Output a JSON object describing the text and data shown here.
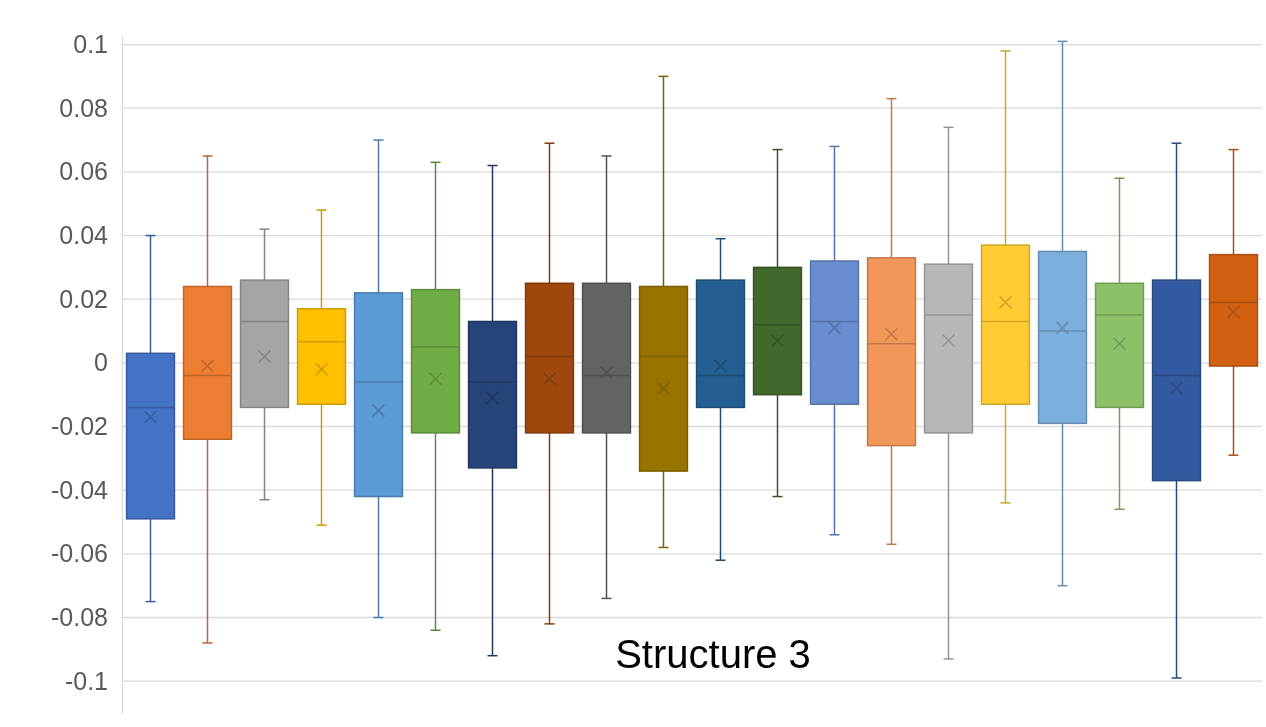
{
  "chart_data": {
    "type": "box",
    "categories": [
      null,
      null,
      null,
      null,
      null,
      null,
      null,
      null,
      null,
      null,
      null,
      null,
      null,
      null,
      null,
      null,
      null,
      null,
      null,
      null
    ],
    "ylim": [
      -0.11,
      0.103
    ],
    "yticks": [
      -0.1,
      -0.08,
      -0.06,
      -0.04,
      -0.02,
      {
        "value": 0,
        "label": "0"
      },
      0.02,
      0.04,
      0.06,
      0.08,
      0.1
    ],
    "grid": "y",
    "colors": [
      "#4472c4",
      "#ed7d31",
      "#a5a5a5",
      "#ffc000",
      "#5b9bd5",
      "#70ad47",
      "#264478",
      "#9e480e",
      "#636363",
      "#997300",
      "#255e91",
      "#43682b",
      "#698ed0",
      "#f1975a",
      "#b7b7b7",
      "#ffcd33",
      "#7cafdd",
      "#8cc168",
      "#335aa1",
      "#d26012"
    ],
    "boxes": [
      {
        "low": -0.075,
        "q1": -0.049,
        "median": -0.014,
        "q3": 0.003,
        "high": 0.04,
        "mean": -0.017
      },
      {
        "low": -0.088,
        "q1": -0.024,
        "median": -0.004,
        "q3": 0.024,
        "high": 0.065,
        "mean": -0.001
      },
      {
        "low": -0.043,
        "q1": -0.014,
        "median": 0.013,
        "q3": 0.026,
        "high": 0.042,
        "mean": 0.002
      },
      {
        "low": -0.051,
        "q1": -0.013,
        "median": 0.0066,
        "q3": 0.017,
        "high": 0.048,
        "mean": -0.002
      },
      {
        "low": -0.08,
        "q1": -0.042,
        "median": -0.006,
        "q3": 0.022,
        "high": 0.07,
        "mean": -0.015
      },
      {
        "low": -0.084,
        "q1": -0.022,
        "median": 0.005,
        "q3": 0.023,
        "high": 0.063,
        "mean": -0.005
      },
      {
        "low": -0.092,
        "q1": -0.033,
        "median": -0.006,
        "q3": 0.013,
        "high": 0.062,
        "mean": -0.011
      },
      {
        "low": -0.082,
        "q1": -0.022,
        "median": 0.002,
        "q3": 0.025,
        "high": 0.069,
        "mean": -0.005
      },
      {
        "low": -0.074,
        "q1": -0.022,
        "median": -0.004,
        "q3": 0.025,
        "high": 0.065,
        "mean": -0.003
      },
      {
        "low": -0.058,
        "q1": -0.034,
        "median": 0.002,
        "q3": 0.024,
        "high": 0.09,
        "mean": -0.008
      },
      {
        "low": -0.062,
        "q1": -0.014,
        "median": -0.004,
        "q3": 0.026,
        "high": 0.039,
        "mean": -0.001
      },
      {
        "low": -0.042,
        "q1": -0.01,
        "median": 0.012,
        "q3": 0.03,
        "high": 0.067,
        "mean": 0.007
      },
      {
        "low": -0.054,
        "q1": -0.013,
        "median": 0.013,
        "q3": 0.032,
        "high": 0.068,
        "mean": 0.011
      },
      {
        "low": -0.057,
        "q1": -0.026,
        "median": 0.006,
        "q3": 0.033,
        "high": 0.083,
        "mean": 0.009
      },
      {
        "low": -0.093,
        "q1": -0.022,
        "median": 0.015,
        "q3": 0.031,
        "high": 0.074,
        "mean": 0.007
      },
      {
        "low": -0.044,
        "q1": -0.013,
        "median": 0.013,
        "q3": 0.037,
        "high": 0.098,
        "mean": 0.019
      },
      {
        "low": -0.07,
        "q1": -0.019,
        "median": 0.01,
        "q3": 0.035,
        "high": 0.101,
        "mean": 0.011
      },
      {
        "low": -0.046,
        "q1": -0.014,
        "median": 0.015,
        "q3": 0.025,
        "high": 0.058,
        "mean": 0.006
      },
      {
        "low": -0.099,
        "q1": -0.037,
        "median": -0.004,
        "q3": 0.026,
        "high": 0.069,
        "mean": -0.008
      },
      {
        "low": -0.029,
        "q1": -0.001,
        "median": 0.019,
        "q3": 0.034,
        "high": 0.067,
        "mean": 0.016
      }
    ],
    "annotations": [
      "Structure 3"
    ]
  }
}
